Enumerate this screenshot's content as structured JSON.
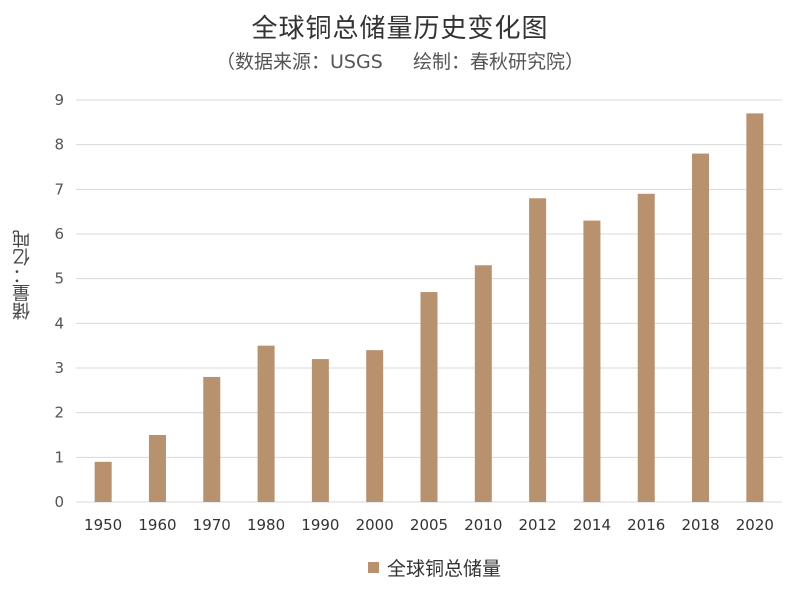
{
  "colors": {
    "bar": "#b8916f",
    "grid": "#d9d9d9",
    "axis_text": "#555555"
  },
  "chart_data": {
    "type": "bar",
    "title": "全球铜总储量历史变化图",
    "subtitle": "（数据来源：USGS     绘制：春秋研究院）",
    "xlabel": "",
    "ylabel": "储量：亿吨",
    "categories": [
      "1950",
      "1960",
      "1970",
      "1980",
      "1990",
      "2000",
      "2005",
      "2010",
      "2012",
      "2014",
      "2016",
      "2018",
      "2020"
    ],
    "series": [
      {
        "name": "全球铜总储量",
        "values": [
          0.9,
          1.5,
          2.8,
          3.5,
          3.2,
          3.4,
          4.7,
          5.3,
          6.8,
          6.3,
          6.9,
          7.8,
          8.7
        ]
      }
    ],
    "ylim": [
      0,
      9
    ],
    "yticks": [
      0,
      1,
      2,
      3,
      4,
      5,
      6,
      7,
      8,
      9
    ],
    "grid": true,
    "legend": "bottom-center"
  }
}
